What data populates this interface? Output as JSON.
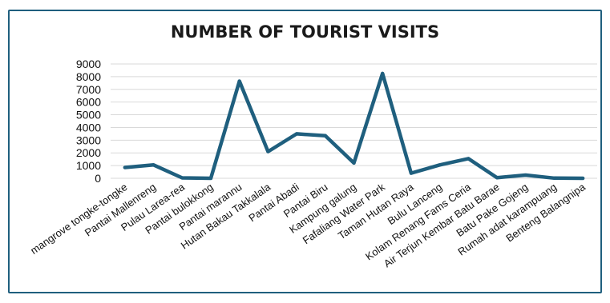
{
  "chart_data": {
    "type": "line",
    "title": "NUMBER OF TOURIST VISITS",
    "xlabel": "",
    "ylabel": "",
    "ylim": [
      0,
      9000
    ],
    "yticks": [
      0,
      1000,
      2000,
      3000,
      4000,
      5000,
      6000,
      7000,
      8000,
      9000
    ],
    "grid": true,
    "legend": "none",
    "line_color": "#1f5f7e",
    "categories": [
      "mangrove tongke-tongke",
      "Pantai Mallenreng",
      "Pulau Larea-rea",
      "Pantai bulokkong",
      "Pantai marannu",
      "Hutan Bakau Takkalala",
      "Pantai Abadi",
      "Pantai Biru",
      "Kampung galung",
      "Fafaliang Water Park",
      "Taman Hutan Raya",
      "Bulu Lanceng",
      "Kolam Renang Fams Ceria",
      "Air Terjun Kembar Batu Barae",
      "Batu Pake Gojeng",
      "Rumah adat karampuang",
      "Benteng Balangnipa"
    ],
    "series": [
      {
        "values": [
          850,
          1050,
          30,
          0,
          7650,
          2100,
          3500,
          3350,
          1200,
          8250,
          400,
          1050,
          1550,
          50,
          250,
          10,
          0
        ]
      }
    ]
  }
}
